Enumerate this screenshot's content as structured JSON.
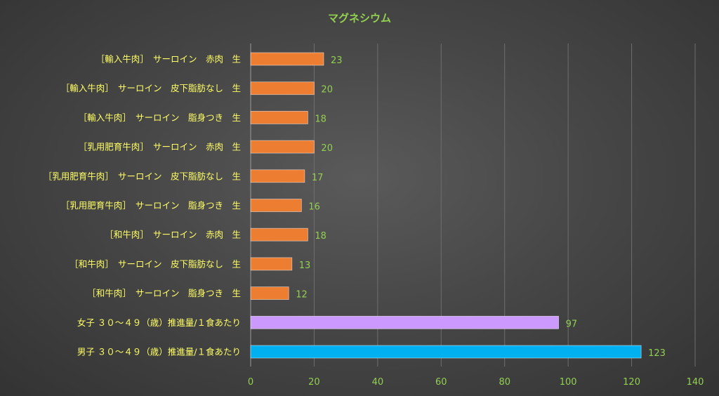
{
  "chart_data": {
    "type": "bar",
    "orientation": "horizontal",
    "title": "マグネシウム",
    "categories": [
      "［輸入牛肉］　サーロイン　赤肉　生",
      "［輸入牛肉］　サーロイン　皮下脂肪なし　生",
      "［輸入牛肉］　サーロイン　脂身つき　生",
      "［乳用肥育牛肉］　サーロイン　赤肉　生",
      "［乳用肥育牛肉］　サーロイン　皮下脂肪なし　生",
      "［乳用肥育牛肉］　サーロイン　脂身つき　生",
      "［和牛肉］　サーロイン　赤肉　生",
      "［和牛肉］　サーロイン　皮下脂肪なし　生",
      "［和牛肉］　サーロイン　脂身つき　生",
      "女子 ３０～４９（歳）推進量/１食あたり",
      "男子 ３０～４９（歳）推進量/１食あたり"
    ],
    "values": [
      23,
      20,
      18,
      20,
      17,
      16,
      18,
      13,
      12,
      97,
      123
    ],
    "colors": [
      "#ed7d31",
      "#ed7d31",
      "#ed7d31",
      "#ed7d31",
      "#ed7d31",
      "#ed7d31",
      "#ed7d31",
      "#ed7d31",
      "#ed7d31",
      "#cc99ff",
      "#00b0f0"
    ],
    "xlim": [
      0,
      140
    ],
    "xticks": [
      0,
      20,
      40,
      60,
      80,
      100,
      120,
      140
    ],
    "grid": true,
    "data_labels": true
  }
}
